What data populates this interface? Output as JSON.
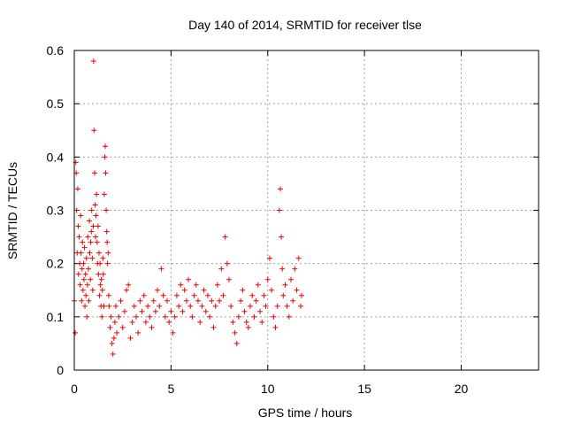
{
  "chart_data": {
    "type": "scatter",
    "title": "Day 140 of 2014, SRMTID for receiver tlse",
    "xlabel": "GPS time / hours",
    "ylabel": "SRMTID / TECUs",
    "xlim": [
      0,
      24
    ],
    "ylim": [
      0,
      0.6
    ],
    "x_ticks": [
      0,
      5,
      10,
      15,
      20
    ],
    "x_tick_labels": [
      "0",
      "5",
      "10",
      "15",
      "20"
    ],
    "y_ticks": [
      0,
      0.1,
      0.2,
      0.3,
      0.4,
      0.5,
      0.6
    ],
    "y_tick_labels": [
      "0",
      "0.1",
      "0.2",
      "0.3",
      "0.4",
      "0.5",
      "0.6"
    ],
    "grid": true,
    "marker": "plus",
    "color": "#ee0000",
    "series": [
      {
        "name": "tlse",
        "points": [
          [
            0.0,
            0.13
          ],
          [
            0.05,
            0.07
          ],
          [
            0.08,
            0.39
          ],
          [
            0.1,
            0.37
          ],
          [
            0.12,
            0.3
          ],
          [
            0.15,
            0.22
          ],
          [
            0.18,
            0.34
          ],
          [
            0.2,
            0.27
          ],
          [
            0.22,
            0.18
          ],
          [
            0.25,
            0.25
          ],
          [
            0.28,
            0.2
          ],
          [
            0.3,
            0.16
          ],
          [
            0.33,
            0.29
          ],
          [
            0.35,
            0.22
          ],
          [
            0.38,
            0.13
          ],
          [
            0.4,
            0.19
          ],
          [
            0.42,
            0.24
          ],
          [
            0.45,
            0.15
          ],
          [
            0.48,
            0.2
          ],
          [
            0.5,
            0.17
          ],
          [
            0.53,
            0.23
          ],
          [
            0.55,
            0.12
          ],
          [
            0.58,
            0.18
          ],
          [
            0.6,
            0.14
          ],
          [
            0.63,
            0.21
          ],
          [
            0.65,
            0.1
          ],
          [
            0.68,
            0.16
          ],
          [
            0.7,
            0.25
          ],
          [
            0.73,
            0.19
          ],
          [
            0.75,
            0.13
          ],
          [
            0.78,
            0.28
          ],
          [
            0.8,
            0.22
          ],
          [
            0.83,
            0.17
          ],
          [
            0.85,
            0.24
          ],
          [
            0.88,
            0.26
          ],
          [
            0.9,
            0.3
          ],
          [
            0.93,
            0.21
          ],
          [
            0.95,
            0.15
          ],
          [
            0.98,
            0.27
          ],
          [
            1.0,
            0.58
          ],
          [
            1.02,
            0.45
          ],
          [
            1.05,
            0.37
          ],
          [
            1.08,
            0.31
          ],
          [
            1.1,
            0.25
          ],
          [
            1.12,
            0.29
          ],
          [
            1.15,
            0.33
          ],
          [
            1.18,
            0.24
          ],
          [
            1.2,
            0.2
          ],
          [
            1.23,
            0.27
          ],
          [
            1.25,
            0.18
          ],
          [
            1.28,
            0.22
          ],
          [
            1.3,
            0.14
          ],
          [
            1.33,
            0.2
          ],
          [
            1.35,
            0.16
          ],
          [
            1.38,
            0.12
          ],
          [
            1.4,
            0.17
          ],
          [
            1.43,
            0.1
          ],
          [
            1.45,
            0.15
          ],
          [
            1.48,
            0.21
          ],
          [
            1.5,
            0.18
          ],
          [
            1.53,
            0.12
          ],
          [
            1.55,
            0.33
          ],
          [
            1.58,
            0.4
          ],
          [
            1.6,
            0.42
          ],
          [
            1.62,
            0.37
          ],
          [
            1.65,
            0.3
          ],
          [
            1.68,
            0.26
          ],
          [
            1.7,
            0.24
          ],
          [
            1.72,
            0.2
          ],
          [
            1.75,
            0.22
          ],
          [
            1.78,
            0.14
          ],
          [
            1.8,
            0.12
          ],
          [
            1.85,
            0.08
          ],
          [
            1.9,
            0.1
          ],
          [
            1.95,
            0.05
          ],
          [
            2.0,
            0.03
          ],
          [
            2.05,
            0.06
          ],
          [
            2.1,
            0.09
          ],
          [
            2.15,
            0.12
          ],
          [
            2.2,
            0.07
          ],
          [
            2.3,
            0.1
          ],
          [
            2.4,
            0.13
          ],
          [
            2.5,
            0.08
          ],
          [
            2.6,
            0.11
          ],
          [
            2.7,
            0.15
          ],
          [
            2.8,
            0.16
          ],
          [
            2.9,
            0.06
          ],
          [
            3.0,
            0.09
          ],
          [
            3.1,
            0.12
          ],
          [
            3.2,
            0.1
          ],
          [
            3.3,
            0.07
          ],
          [
            3.4,
            0.13
          ],
          [
            3.5,
            0.11
          ],
          [
            3.6,
            0.14
          ],
          [
            3.7,
            0.09
          ],
          [
            3.8,
            0.12
          ],
          [
            3.9,
            0.1
          ],
          [
            4.0,
            0.08
          ],
          [
            4.1,
            0.13
          ],
          [
            4.2,
            0.11
          ],
          [
            4.3,
            0.15
          ],
          [
            4.4,
            0.12
          ],
          [
            4.5,
            0.19
          ],
          [
            4.6,
            0.14
          ],
          [
            4.7,
            0.1
          ],
          [
            4.8,
            0.13
          ],
          [
            4.9,
            0.09
          ],
          [
            5.0,
            0.11
          ],
          [
            5.1,
            0.07
          ],
          [
            5.2,
            0.1
          ],
          [
            5.3,
            0.14
          ],
          [
            5.4,
            0.12
          ],
          [
            5.5,
            0.16
          ],
          [
            5.6,
            0.11
          ],
          [
            5.7,
            0.15
          ],
          [
            5.8,
            0.13
          ],
          [
            5.9,
            0.17
          ],
          [
            6.0,
            0.12
          ],
          [
            6.1,
            0.1
          ],
          [
            6.2,
            0.14
          ],
          [
            6.3,
            0.16
          ],
          [
            6.4,
            0.13
          ],
          [
            6.5,
            0.09
          ],
          [
            6.6,
            0.12
          ],
          [
            6.7,
            0.15
          ],
          [
            6.8,
            0.11
          ],
          [
            6.9,
            0.14
          ],
          [
            7.0,
            0.1
          ],
          [
            7.1,
            0.13
          ],
          [
            7.2,
            0.08
          ],
          [
            7.3,
            0.12
          ],
          [
            7.4,
            0.16
          ],
          [
            7.5,
            0.13
          ],
          [
            7.6,
            0.19
          ],
          [
            7.7,
            0.14
          ],
          [
            7.8,
            0.25
          ],
          [
            7.9,
            0.2
          ],
          [
            8.0,
            0.17
          ],
          [
            8.1,
            0.12
          ],
          [
            8.2,
            0.09
          ],
          [
            8.3,
            0.07
          ],
          [
            8.4,
            0.05
          ],
          [
            8.5,
            0.1
          ],
          [
            8.6,
            0.13
          ],
          [
            8.7,
            0.15
          ],
          [
            8.8,
            0.11
          ],
          [
            8.9,
            0.09
          ],
          [
            9.0,
            0.08
          ],
          [
            9.1,
            0.12
          ],
          [
            9.2,
            0.14
          ],
          [
            9.3,
            0.1
          ],
          [
            9.4,
            0.13
          ],
          [
            9.5,
            0.16
          ],
          [
            9.6,
            0.11
          ],
          [
            9.7,
            0.09
          ],
          [
            9.8,
            0.14
          ],
          [
            9.9,
            0.12
          ],
          [
            10.0,
            0.17
          ],
          [
            10.1,
            0.21
          ],
          [
            10.2,
            0.15
          ],
          [
            10.3,
            0.1
          ],
          [
            10.4,
            0.08
          ],
          [
            10.5,
            0.12
          ],
          [
            10.6,
            0.3
          ],
          [
            10.65,
            0.34
          ],
          [
            10.7,
            0.25
          ],
          [
            10.75,
            0.19
          ],
          [
            10.8,
            0.14
          ],
          [
            10.9,
            0.16
          ],
          [
            11.0,
            0.12
          ],
          [
            11.1,
            0.1
          ],
          [
            11.2,
            0.17
          ],
          [
            11.3,
            0.13
          ],
          [
            11.4,
            0.19
          ],
          [
            11.5,
            0.15
          ],
          [
            11.6,
            0.21
          ],
          [
            11.7,
            0.12
          ],
          [
            11.75,
            0.14
          ]
        ]
      }
    ]
  }
}
